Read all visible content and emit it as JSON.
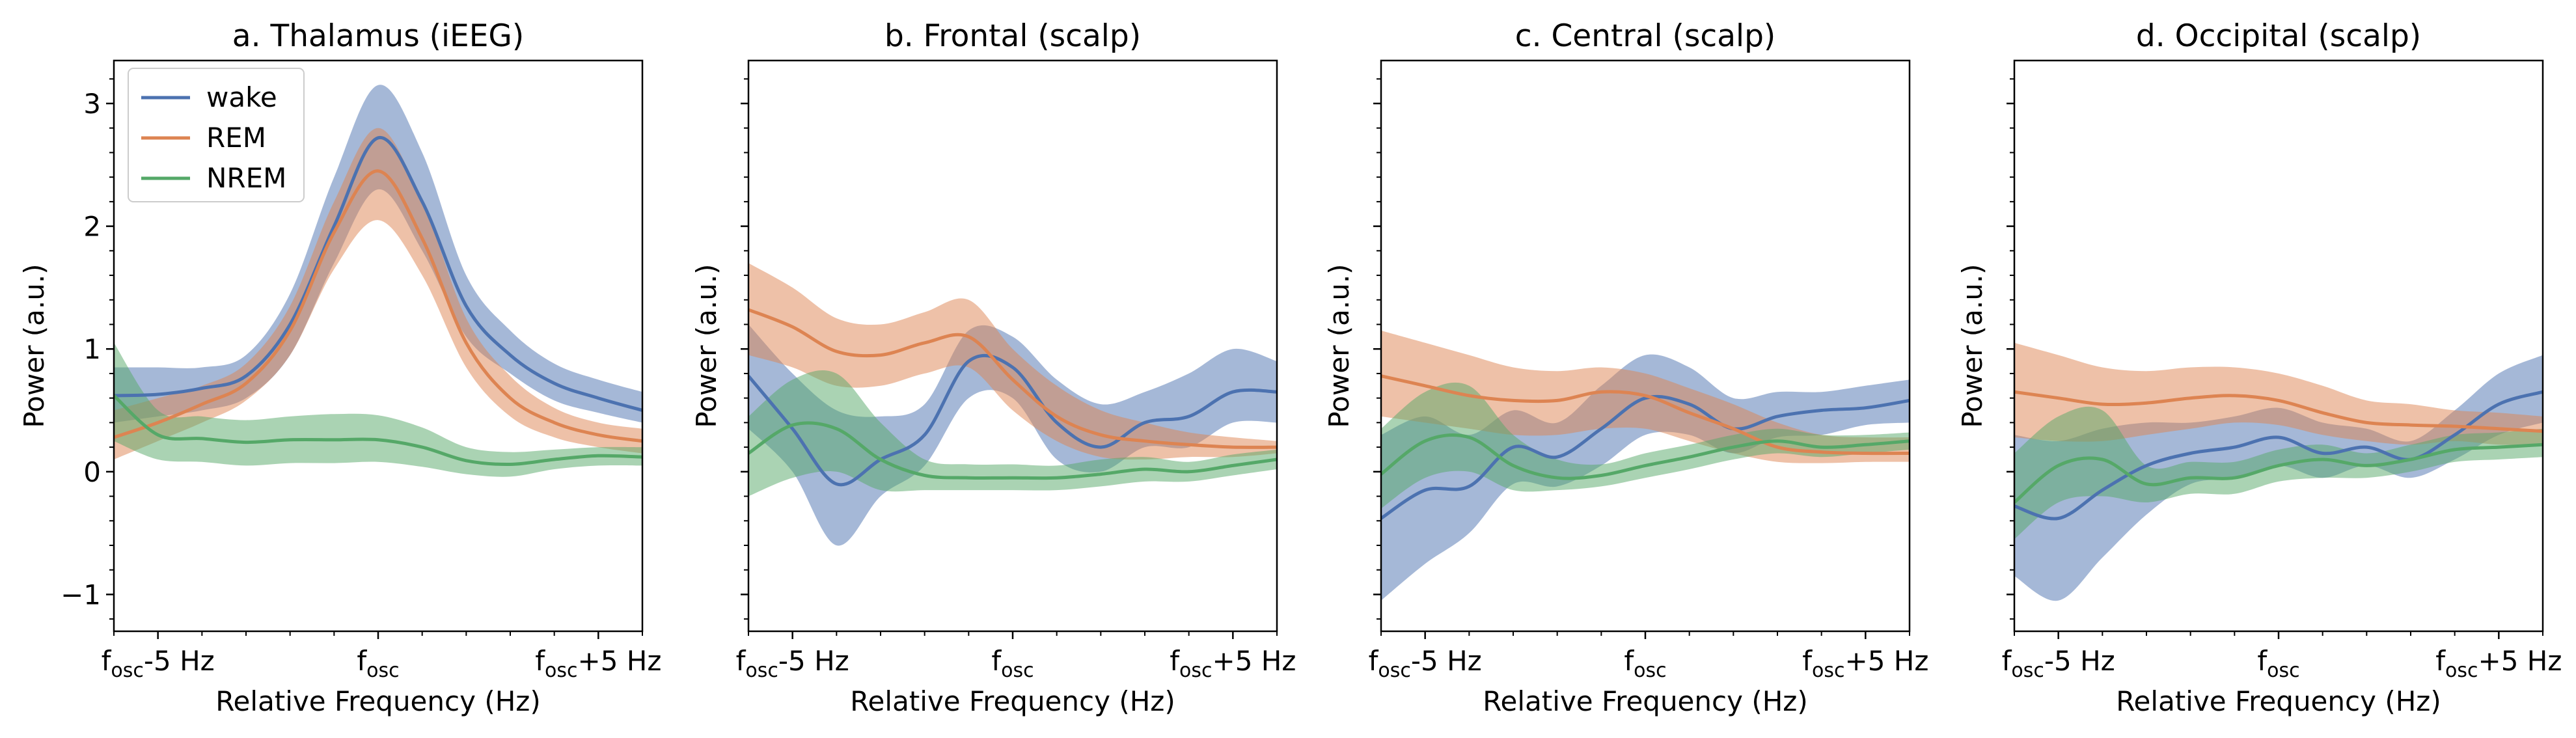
{
  "figure": {
    "shared_ylabel": "Power (a.u.)",
    "shared_xlabel": "Relative Frequency (Hz)"
  },
  "chart_data": [
    {
      "type": "line",
      "title": "a. Thalamus (iEEG)",
      "xlabel": "Relative Frequency (Hz)",
      "ylabel": "Power (a.u.)",
      "xlim": [
        -6,
        6
      ],
      "ylim": [
        -1.3,
        3.35
      ],
      "x_ticks": [
        {
          "value": -5,
          "base": "f",
          "sub": "osc",
          "suffix": "-5 Hz"
        },
        {
          "value": 0,
          "base": "f",
          "sub": "osc",
          "suffix": ""
        },
        {
          "value": 5,
          "base": "f",
          "sub": "osc",
          "suffix": "+5 Hz"
        }
      ],
      "y_ticks": [
        -1,
        0,
        1,
        2,
        3
      ],
      "y_tick_labels_shown": true,
      "legend": {
        "placement": "top-left",
        "entries": [
          "wake",
          "REM",
          "NREM"
        ]
      },
      "colors": {
        "wake": "#4c72b0",
        "REM": "#dd8452",
        "NREM": "#55a868"
      },
      "x": [
        -6,
        -5,
        -4,
        -3,
        -2,
        -1,
        0,
        1,
        2,
        3,
        4,
        5,
        6
      ],
      "series": [
        {
          "name": "wake",
          "color": "#4c72b0",
          "values": [
            0.62,
            0.63,
            0.68,
            0.78,
            1.2,
            2.0,
            2.72,
            2.2,
            1.35,
            0.95,
            0.72,
            0.6,
            0.5
          ],
          "lower": [
            0.4,
            0.45,
            0.5,
            0.6,
            0.95,
            1.7,
            2.3,
            1.8,
            1.1,
            0.8,
            0.58,
            0.48,
            0.4
          ],
          "upper": [
            0.85,
            0.85,
            0.85,
            0.95,
            1.45,
            2.4,
            3.15,
            2.6,
            1.6,
            1.15,
            0.88,
            0.75,
            0.65
          ]
        },
        {
          "name": "REM",
          "color": "#dd8452",
          "values": [
            0.28,
            0.4,
            0.55,
            0.72,
            1.15,
            1.95,
            2.45,
            1.9,
            1.05,
            0.6,
            0.4,
            0.3,
            0.25
          ],
          "lower": [
            0.1,
            0.25,
            0.4,
            0.58,
            0.95,
            1.65,
            2.05,
            1.6,
            0.85,
            0.45,
            0.28,
            0.2,
            0.15
          ],
          "upper": [
            0.5,
            0.6,
            0.7,
            0.88,
            1.35,
            2.2,
            2.8,
            2.2,
            1.25,
            0.78,
            0.52,
            0.4,
            0.35
          ]
        },
        {
          "name": "NREM",
          "color": "#55a868",
          "values": [
            0.62,
            0.3,
            0.27,
            0.24,
            0.26,
            0.26,
            0.26,
            0.2,
            0.09,
            0.06,
            0.1,
            0.13,
            0.12
          ],
          "lower": [
            0.25,
            0.1,
            0.08,
            0.05,
            0.07,
            0.07,
            0.08,
            0.04,
            -0.02,
            -0.04,
            0.02,
            0.05,
            0.05
          ],
          "upper": [
            1.05,
            0.5,
            0.45,
            0.42,
            0.45,
            0.47,
            0.46,
            0.36,
            0.2,
            0.16,
            0.18,
            0.2,
            0.2
          ]
        }
      ]
    },
    {
      "type": "line",
      "title": "b. Frontal (scalp)",
      "xlabel": "Relative Frequency (Hz)",
      "ylabel": "Power (a.u.)",
      "xlim": [
        -6,
        6
      ],
      "ylim": [
        -1.3,
        3.35
      ],
      "x_ticks": [
        {
          "value": -5,
          "base": "f",
          "sub": "osc",
          "suffix": "-5 Hz"
        },
        {
          "value": 0,
          "base": "f",
          "sub": "osc",
          "suffix": ""
        },
        {
          "value": 5,
          "base": "f",
          "sub": "osc",
          "suffix": "+5 Hz"
        }
      ],
      "y_ticks": [
        -1,
        0,
        1,
        2,
        3
      ],
      "y_tick_labels_shown": false,
      "x": [
        -6,
        -5,
        -4,
        -3,
        -2,
        -1,
        0,
        1,
        2,
        3,
        4,
        5,
        6
      ],
      "series": [
        {
          "name": "wake",
          "color": "#4c72b0",
          "values": [
            0.78,
            0.35,
            -0.1,
            0.1,
            0.3,
            0.9,
            0.85,
            0.4,
            0.2,
            0.4,
            0.45,
            0.65,
            0.65
          ],
          "lower": [
            0.35,
            0.0,
            -0.6,
            -0.2,
            0.05,
            0.6,
            0.6,
            0.1,
            0.0,
            0.2,
            0.2,
            0.4,
            0.4
          ],
          "upper": [
            1.2,
            0.8,
            0.5,
            0.45,
            0.55,
            1.15,
            1.1,
            0.75,
            0.55,
            0.65,
            0.8,
            1.0,
            0.9
          ]
        },
        {
          "name": "REM",
          "color": "#dd8452",
          "values": [
            1.32,
            1.18,
            0.98,
            0.95,
            1.05,
            1.1,
            0.75,
            0.45,
            0.3,
            0.25,
            0.22,
            0.2,
            0.2
          ],
          "lower": [
            0.95,
            0.85,
            0.7,
            0.7,
            0.8,
            0.85,
            0.5,
            0.25,
            0.12,
            0.1,
            0.12,
            0.12,
            0.15
          ],
          "upper": [
            1.7,
            1.5,
            1.25,
            1.2,
            1.3,
            1.4,
            1.0,
            0.7,
            0.5,
            0.4,
            0.32,
            0.28,
            0.25
          ]
        },
        {
          "name": "NREM",
          "color": "#55a868",
          "values": [
            0.15,
            0.38,
            0.35,
            0.1,
            -0.03,
            -0.05,
            -0.05,
            -0.05,
            -0.02,
            0.02,
            0.0,
            0.05,
            0.1
          ],
          "lower": [
            -0.2,
            -0.05,
            0.0,
            -0.15,
            -0.15,
            -0.15,
            -0.15,
            -0.15,
            -0.12,
            -0.08,
            -0.08,
            -0.03,
            0.02
          ],
          "upper": [
            0.45,
            0.75,
            0.8,
            0.4,
            0.1,
            0.06,
            0.06,
            0.05,
            0.1,
            0.12,
            0.08,
            0.14,
            0.18
          ]
        }
      ]
    },
    {
      "type": "line",
      "title": "c. Central (scalp)",
      "xlabel": "Relative Frequency (Hz)",
      "ylabel": "Power (a.u.)",
      "xlim": [
        -6,
        6
      ],
      "ylim": [
        -1.3,
        3.35
      ],
      "x_ticks": [
        {
          "value": -5,
          "base": "f",
          "sub": "osc",
          "suffix": "-5 Hz"
        },
        {
          "value": 0,
          "base": "f",
          "sub": "osc",
          "suffix": ""
        },
        {
          "value": 5,
          "base": "f",
          "sub": "osc",
          "suffix": "+5 Hz"
        }
      ],
      "y_ticks": [
        -1,
        0,
        1,
        2,
        3
      ],
      "y_tick_labels_shown": false,
      "x": [
        -6,
        -5,
        -4,
        -3,
        -2,
        -1,
        0,
        1,
        2,
        3,
        4,
        5,
        6
      ],
      "series": [
        {
          "name": "wake",
          "color": "#4c72b0",
          "values": [
            -0.38,
            -0.15,
            -0.12,
            0.2,
            0.12,
            0.35,
            0.6,
            0.55,
            0.35,
            0.45,
            0.5,
            0.52,
            0.58
          ],
          "lower": [
            -1.05,
            -0.75,
            -0.5,
            -0.1,
            -0.12,
            0.05,
            0.3,
            0.3,
            0.15,
            0.28,
            0.3,
            0.38,
            0.4
          ],
          "upper": [
            0.3,
            0.45,
            0.3,
            0.5,
            0.4,
            0.7,
            0.95,
            0.85,
            0.6,
            0.65,
            0.65,
            0.7,
            0.75
          ]
        },
        {
          "name": "REM",
          "color": "#dd8452",
          "values": [
            0.78,
            0.7,
            0.62,
            0.58,
            0.58,
            0.65,
            0.62,
            0.48,
            0.35,
            0.2,
            0.16,
            0.15,
            0.15
          ],
          "lower": [
            0.45,
            0.4,
            0.35,
            0.3,
            0.3,
            0.35,
            0.35,
            0.25,
            0.15,
            0.08,
            0.07,
            0.08,
            0.08
          ],
          "upper": [
            1.15,
            1.05,
            0.95,
            0.85,
            0.82,
            0.85,
            0.8,
            0.68,
            0.55,
            0.4,
            0.3,
            0.28,
            0.28
          ]
        },
        {
          "name": "NREM",
          "color": "#55a868",
          "values": [
            -0.02,
            0.25,
            0.28,
            0.05,
            -0.05,
            -0.03,
            0.05,
            0.12,
            0.2,
            0.25,
            0.2,
            0.22,
            0.25
          ],
          "lower": [
            -0.3,
            -0.05,
            0.0,
            -0.15,
            -0.15,
            -0.12,
            -0.05,
            0.02,
            0.1,
            0.15,
            0.12,
            0.15,
            0.18
          ],
          "upper": [
            0.35,
            0.65,
            0.7,
            0.3,
            0.1,
            0.06,
            0.15,
            0.22,
            0.3,
            0.35,
            0.3,
            0.3,
            0.32
          ]
        }
      ]
    },
    {
      "type": "line",
      "title": "d. Occipital (scalp)",
      "xlabel": "Relative Frequency (Hz)",
      "ylabel": "Power (a.u.)",
      "xlim": [
        -6,
        6
      ],
      "ylim": [
        -1.3,
        3.35
      ],
      "x_ticks": [
        {
          "value": -5,
          "base": "f",
          "sub": "osc",
          "suffix": "-5 Hz"
        },
        {
          "value": 0,
          "base": "f",
          "sub": "osc",
          "suffix": ""
        },
        {
          "value": 5,
          "base": "f",
          "sub": "osc",
          "suffix": "+5 Hz"
        }
      ],
      "y_ticks": [
        -1,
        0,
        1,
        2,
        3
      ],
      "y_tick_labels_shown": false,
      "x": [
        -6,
        -5,
        -4,
        -3,
        -2,
        -1,
        0,
        1,
        2,
        3,
        4,
        5,
        6
      ],
      "series": [
        {
          "name": "wake",
          "color": "#4c72b0",
          "values": [
            -0.28,
            -0.38,
            -0.15,
            0.05,
            0.15,
            0.2,
            0.28,
            0.15,
            0.2,
            0.1,
            0.3,
            0.55,
            0.65
          ],
          "lower": [
            -0.85,
            -1.05,
            -0.7,
            -0.35,
            -0.1,
            -0.05,
            0.05,
            -0.05,
            0.05,
            -0.05,
            0.1,
            0.3,
            0.4
          ],
          "upper": [
            0.3,
            0.25,
            0.35,
            0.4,
            0.4,
            0.45,
            0.52,
            0.4,
            0.35,
            0.25,
            0.5,
            0.8,
            0.95
          ]
        },
        {
          "name": "REM",
          "color": "#dd8452",
          "values": [
            0.65,
            0.6,
            0.55,
            0.56,
            0.6,
            0.62,
            0.58,
            0.48,
            0.4,
            0.38,
            0.37,
            0.35,
            0.33
          ],
          "lower": [
            0.28,
            0.25,
            0.25,
            0.3,
            0.35,
            0.4,
            0.38,
            0.3,
            0.25,
            0.22,
            0.25,
            0.22,
            0.22
          ],
          "upper": [
            1.05,
            0.95,
            0.85,
            0.82,
            0.85,
            0.85,
            0.8,
            0.7,
            0.58,
            0.55,
            0.5,
            0.48,
            0.45
          ]
        },
        {
          "name": "NREM",
          "color": "#55a868",
          "values": [
            -0.25,
            0.05,
            0.1,
            -0.1,
            -0.05,
            -0.05,
            0.05,
            0.1,
            0.05,
            0.1,
            0.18,
            0.2,
            0.22
          ],
          "lower": [
            -0.55,
            -0.25,
            -0.2,
            -0.25,
            -0.18,
            -0.18,
            -0.08,
            -0.05,
            -0.05,
            0.0,
            0.08,
            0.1,
            0.12
          ],
          "upper": [
            0.15,
            0.45,
            0.5,
            0.05,
            0.08,
            0.08,
            0.18,
            0.22,
            0.15,
            0.22,
            0.3,
            0.32,
            0.35
          ]
        }
      ]
    }
  ]
}
